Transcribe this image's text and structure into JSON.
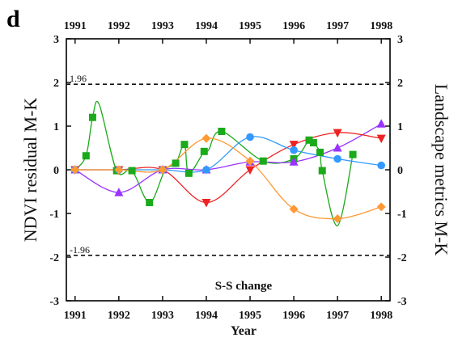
{
  "panel_label": "d",
  "chart_data": {
    "type": "line",
    "xlabel": "Year",
    "ylabel": "NDVI residual M-K",
    "ylabel_right": "Landscape metrics M-K",
    "annotation": "S-S change",
    "xlim": [
      1990.8,
      1998.2
    ],
    "ylim": [
      -3,
      3
    ],
    "x_ticks": [
      1991,
      1992,
      1993,
      1994,
      1995,
      1996,
      1997,
      1998
    ],
    "y_ticks": [
      -3,
      -2,
      -1,
      0,
      1,
      2,
      3
    ],
    "reference_lines": [
      {
        "y": 1.96,
        "label": "1.96"
      },
      {
        "y": -1.96,
        "label": "-1.96"
      }
    ],
    "grid": false,
    "series": [
      {
        "color": "#1aaa1a",
        "marker": "square",
        "x": [
          1991,
          1991.25,
          1991.4,
          1991.55,
          1991.95,
          1992.3,
          1992.7,
          1993.05,
          1993.3,
          1993.5,
          1993.6,
          1993.95,
          1994.05,
          1994.35,
          1995.3,
          1996.0,
          1996.35,
          1996.45,
          1996.6,
          1996.65,
          1997.0,
          1997.35
        ],
        "y": [
          0,
          0.32,
          1.2,
          1.5,
          -0.02,
          -0.02,
          -0.75,
          -0.02,
          0.15,
          0.58,
          -0.08,
          0.42,
          0.45,
          0.88,
          0.2,
          0.25,
          0.68,
          0.62,
          0.4,
          -0.02,
          -1.28,
          0.35
        ],
        "marker_x": [
          1991,
          1991.25,
          1991.4,
          1991.95,
          1992.3,
          1992.7,
          1993.3,
          1993.5,
          1993.6,
          1993.95,
          1994.35,
          1995.3,
          1996.0,
          1996.35,
          1996.45,
          1996.6,
          1996.65,
          1997.35
        ],
        "marker_y": [
          0,
          0.32,
          1.2,
          -0.02,
          -0.02,
          -0.75,
          0.15,
          0.58,
          -0.08,
          0.42,
          0.88,
          0.2,
          0.25,
          0.68,
          0.62,
          0.4,
          -0.02,
          0.35
        ]
      },
      {
        "color": "#9933ff",
        "marker": "triangle-up",
        "x": [
          1991,
          1992,
          1993,
          1994,
          1995,
          1996,
          1997,
          1998
        ],
        "y": [
          0,
          -0.52,
          0,
          0,
          0.18,
          0.18,
          0.5,
          1.05
        ]
      },
      {
        "color": "#ee2222",
        "marker": "triangle-down",
        "x": [
          1991,
          1992,
          1993,
          1994,
          1995,
          1996,
          1997,
          1998
        ],
        "y": [
          0,
          0,
          0,
          -0.75,
          0,
          0.58,
          0.85,
          0.72
        ]
      },
      {
        "color": "#3399ff",
        "marker": "circle",
        "x": [
          1991,
          1992,
          1993,
          1994,
          1995,
          1996,
          1997,
          1998
        ],
        "y": [
          0,
          0,
          0,
          0,
          0.75,
          0.45,
          0.25,
          0.1
        ]
      },
      {
        "color": "#ff9933",
        "marker": "diamond",
        "x": [
          1991,
          1992,
          1993,
          1994,
          1995,
          1996,
          1997,
          1998
        ],
        "y": [
          0,
          0,
          0,
          0.72,
          0.2,
          -0.9,
          -1.12,
          -0.85
        ]
      }
    ]
  }
}
